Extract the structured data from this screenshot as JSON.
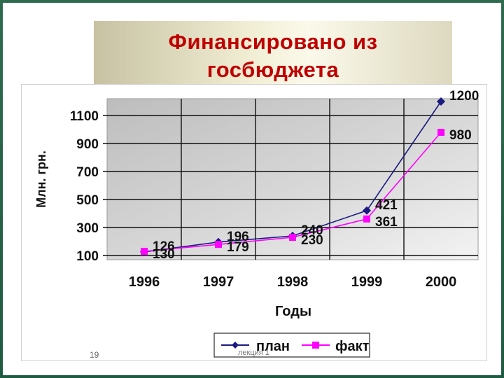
{
  "slide": {
    "title_line1": "Финансировано из",
    "title_line2": "госбюджета",
    "page_number": "19",
    "footer_text": "лекция 1"
  },
  "colors": {
    "title": "#c00000",
    "plan": "#1a1a80",
    "fact": "#ff00ff",
    "plot_bg": "#c8c8c8"
  },
  "chart_data": {
    "type": "line",
    "title": "",
    "xlabel": "Годы",
    "ylabel": "Млн. грн.",
    "categories": [
      "1996",
      "1997",
      "1998",
      "1999",
      "2000"
    ],
    "yticks": [
      100,
      300,
      500,
      700,
      900,
      1100
    ],
    "ylim": [
      100,
      1200
    ],
    "grid": true,
    "legend_position": "bottom",
    "series": [
      {
        "name": "план",
        "values": [
          126,
          196,
          240,
          421,
          1200
        ],
        "labels": [
          "126",
          "196",
          "240",
          "421",
          "1200"
        ],
        "marker": "diamond",
        "color": "#1a1a80"
      },
      {
        "name": "факт",
        "values": [
          130,
          179,
          230,
          361,
          980
        ],
        "labels": [
          "130",
          "179",
          "230",
          "361",
          "980"
        ],
        "marker": "square",
        "color": "#ff00ff"
      }
    ]
  }
}
